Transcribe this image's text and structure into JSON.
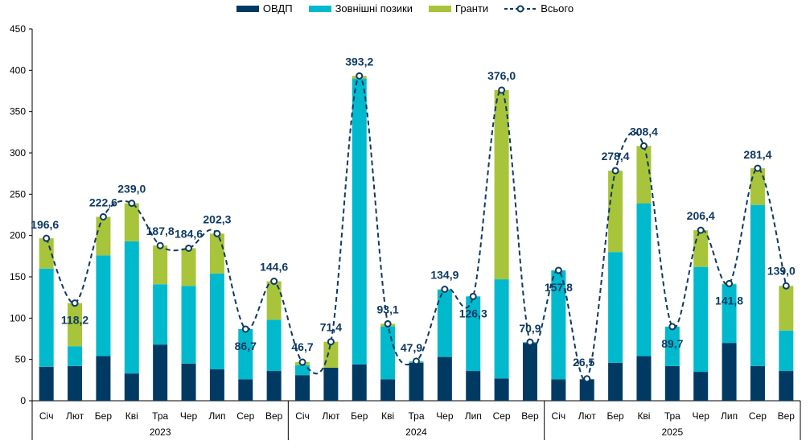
{
  "chart_data": {
    "type": "bar",
    "stacked": true,
    "ylim": [
      0,
      450
    ],
    "yticks": [
      0,
      50,
      100,
      150,
      200,
      250,
      300,
      350,
      400,
      450
    ],
    "grid": false,
    "legend_position": "top",
    "years": [
      "2023",
      "2024",
      "2025"
    ],
    "categories": [
      "Січ",
      "Лют",
      "Бер",
      "Кві",
      "Тра",
      "Чер",
      "Лип",
      "Сер",
      "Вер",
      "Січ",
      "Лют",
      "Бер",
      "Кві",
      "Тра",
      "Чер",
      "Лип",
      "Сер",
      "Вер",
      "Січ",
      "Лют",
      "Бер",
      "Кві",
      "Тра",
      "Чер",
      "Лип",
      "Сер",
      "Вер"
    ],
    "series": [
      {
        "name": "ОВДП",
        "color": "#003a63",
        "values": [
          41,
          42,
          54,
          33,
          68,
          45,
          38,
          26,
          36,
          31,
          40,
          44,
          26,
          46,
          53,
          36,
          27,
          70,
          26,
          26,
          46,
          54,
          42,
          35,
          70,
          42,
          36
        ]
      },
      {
        "name": "Зовнішні позики",
        "color": "#00b9cd",
        "values": [
          119,
          24,
          122,
          160,
          73,
          94,
          116,
          60.7,
          62,
          12,
          0,
          346,
          64,
          1.5,
          81.5,
          90.3,
          120,
          0.9,
          131.8,
          0,
          134,
          185,
          47.7,
          127,
          70.8,
          195,
          49
        ]
      },
      {
        "name": "Гранти",
        "color": "#a8c43a",
        "values": [
          36.6,
          52.2,
          46.6,
          46,
          46.8,
          45.6,
          48.3,
          0,
          46.6,
          3.7,
          31.4,
          3.2,
          3.1,
          0.4,
          0.4,
          0,
          229,
          0,
          0,
          0.5,
          98.4,
          69.4,
          0,
          44.4,
          1,
          44.4,
          54
        ]
      }
    ],
    "total": {
      "name": "Всього",
      "color": "#0e3a63",
      "values": [
        196.6,
        118.2,
        222.6,
        239.0,
        187.8,
        184.6,
        202.3,
        86.7,
        144.6,
        46.7,
        71.4,
        393.2,
        93.1,
        47.9,
        134.9,
        126.3,
        376.0,
        70.9,
        157.8,
        26.5,
        278.4,
        308.4,
        89.7,
        206.4,
        141.8,
        281.4,
        139.0
      ],
      "labels": [
        "196,6",
        "118,2",
        "222,6",
        "239,0",
        "187,8",
        "184,6",
        "202,3",
        "86,7",
        "144,6",
        "46,7",
        "71,4",
        "393,2",
        "93,1",
        "47,9",
        "134,9",
        "126,3",
        "376,0",
        "70,9",
        "157,8",
        "26,5",
        "278,4",
        "308,4",
        "89,7",
        "206,4",
        "141,8",
        "281,4",
        "139,0"
      ]
    }
  }
}
